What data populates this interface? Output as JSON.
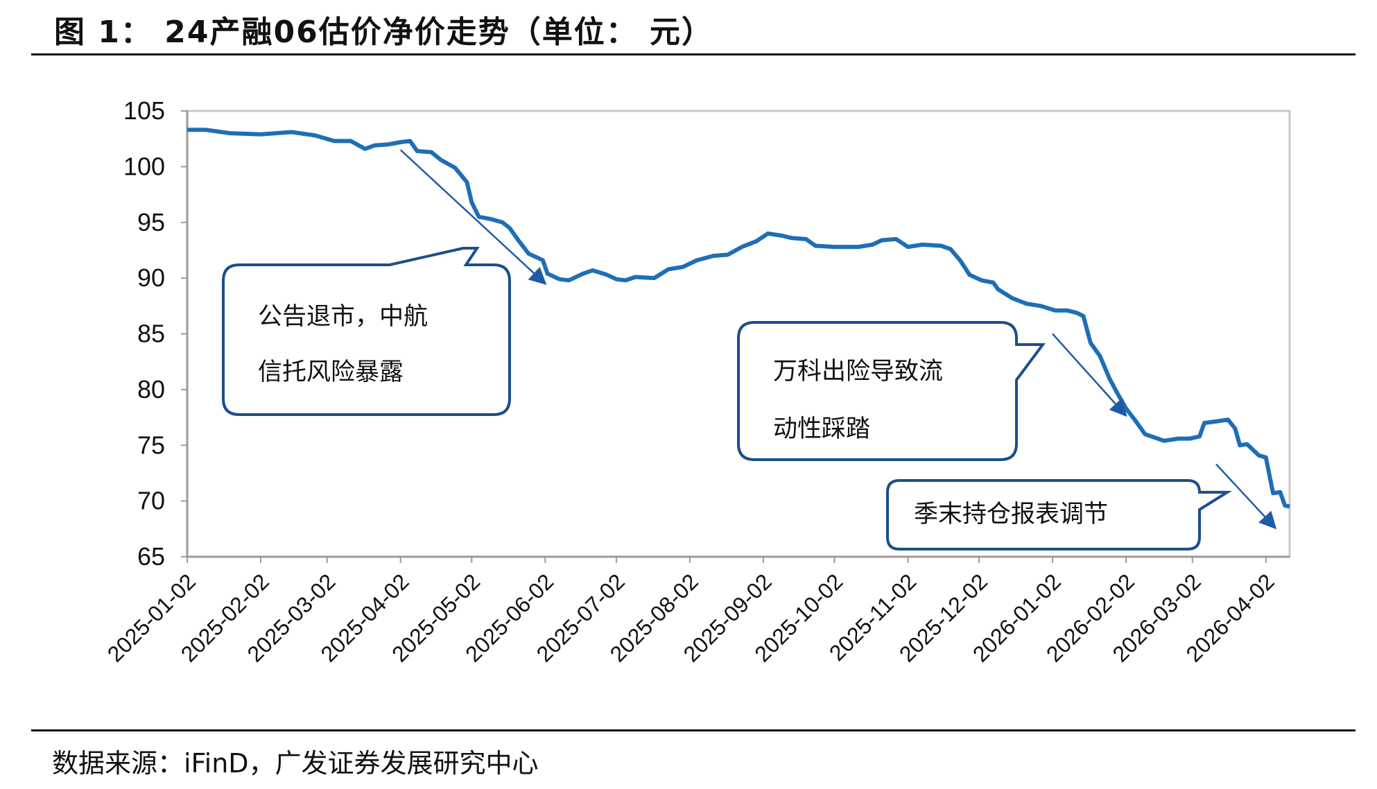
{
  "header": {
    "title": "图  1：  24产融06估价净价走势（单位：  元）"
  },
  "source": {
    "text": "数据来源：iFinD，广发证券发展研究中心"
  },
  "colors": {
    "line": "#1f6eb5",
    "callout_border": "#1b4f8a",
    "arrow": "#1f5aa6",
    "axis": "#999999"
  },
  "chart_data": {
    "type": "line",
    "title": "24产融06估价净价走势（单位：元）",
    "ylim": [
      65,
      105
    ],
    "yticks": [
      "105",
      "100",
      "95",
      "90",
      "85",
      "80",
      "75",
      "70",
      "65"
    ],
    "xticks": [
      "2025-01-02",
      "2025-02-02",
      "2025-03-02",
      "2025-04-02",
      "2025-05-02",
      "2025-06-02",
      "2025-07-02",
      "2025-08-02",
      "2025-09-02",
      "2025-10-02",
      "2025-11-02",
      "2025-12-02",
      "2026-01-02",
      "2026-02-02",
      "2026-03-02",
      "2026-04-02"
    ],
    "grid": false,
    "series": [
      {
        "points": [
          [
            "2025-01-02",
            103.3
          ],
          [
            "2025-01-10",
            103.3
          ],
          [
            "2025-01-20",
            103.0
          ],
          [
            "2025-02-02",
            102.9
          ],
          [
            "2025-02-15",
            103.1
          ],
          [
            "2025-02-25",
            102.8
          ],
          [
            "2025-03-05",
            102.3
          ],
          [
            "2025-03-12",
            102.3
          ],
          [
            "2025-03-18",
            101.6
          ],
          [
            "2025-03-22",
            101.9
          ],
          [
            "2025-03-28",
            102.0
          ],
          [
            "2025-04-02",
            102.2
          ],
          [
            "2025-04-06",
            102.3
          ],
          [
            "2025-04-09",
            101.4
          ],
          [
            "2025-04-15",
            101.3
          ],
          [
            "2025-04-19",
            100.6
          ],
          [
            "2025-04-25",
            99.9
          ],
          [
            "2025-04-30",
            98.6
          ],
          [
            "2025-05-02",
            96.8
          ],
          [
            "2025-05-05",
            95.5
          ],
          [
            "2025-05-10",
            95.3
          ],
          [
            "2025-05-15",
            95.0
          ],
          [
            "2025-05-18",
            94.5
          ],
          [
            "2025-05-22",
            93.3
          ],
          [
            "2025-05-26",
            92.2
          ],
          [
            "2025-05-30",
            91.8
          ],
          [
            "2025-06-01",
            91.6
          ],
          [
            "2025-06-03",
            90.4
          ],
          [
            "2025-06-08",
            89.9
          ],
          [
            "2025-06-12",
            89.8
          ],
          [
            "2025-06-18",
            90.4
          ],
          [
            "2025-06-22",
            90.7
          ],
          [
            "2025-06-28",
            90.3
          ],
          [
            "2025-07-02",
            89.9
          ],
          [
            "2025-07-06",
            89.8
          ],
          [
            "2025-07-10",
            90.1
          ],
          [
            "2025-07-18",
            90.0
          ],
          [
            "2025-07-24",
            90.8
          ],
          [
            "2025-07-30",
            91.0
          ],
          [
            "2025-08-05",
            91.6
          ],
          [
            "2025-08-12",
            92.0
          ],
          [
            "2025-08-18",
            92.1
          ],
          [
            "2025-08-24",
            92.8
          ],
          [
            "2025-08-30",
            93.3
          ],
          [
            "2025-09-04",
            94.0
          ],
          [
            "2025-09-10",
            93.8
          ],
          [
            "2025-09-14",
            93.6
          ],
          [
            "2025-09-20",
            93.5
          ],
          [
            "2025-09-24",
            92.9
          ],
          [
            "2025-10-02",
            92.8
          ],
          [
            "2025-10-12",
            92.8
          ],
          [
            "2025-10-18",
            93.0
          ],
          [
            "2025-10-22",
            93.4
          ],
          [
            "2025-10-28",
            93.5
          ],
          [
            "2025-11-02",
            92.8
          ],
          [
            "2025-11-08",
            93.0
          ],
          [
            "2025-11-16",
            92.9
          ],
          [
            "2025-11-20",
            92.6
          ],
          [
            "2025-11-24",
            91.6
          ],
          [
            "2025-11-28",
            90.3
          ],
          [
            "2025-12-03",
            89.8
          ],
          [
            "2025-12-08",
            89.6
          ],
          [
            "2025-12-10",
            89.0
          ],
          [
            "2025-12-16",
            88.2
          ],
          [
            "2025-12-22",
            87.7
          ],
          [
            "2025-12-28",
            87.5
          ],
          [
            "2026-01-03",
            87.1
          ],
          [
            "2026-01-08",
            87.1
          ],
          [
            "2026-01-12",
            86.9
          ],
          [
            "2026-01-15",
            86.6
          ],
          [
            "2026-01-18",
            84.2
          ],
          [
            "2026-01-22",
            83.0
          ],
          [
            "2026-01-26",
            81.0
          ],
          [
            "2026-01-29",
            79.8
          ],
          [
            "2026-02-02",
            78.3
          ],
          [
            "2026-02-06",
            77.2
          ],
          [
            "2026-02-10",
            76.0
          ],
          [
            "2026-02-14",
            75.7
          ],
          [
            "2026-02-18",
            75.4
          ],
          [
            "2026-02-24",
            75.6
          ],
          [
            "2026-03-01",
            75.6
          ],
          [
            "2026-03-05",
            75.8
          ],
          [
            "2026-03-07",
            77.0
          ],
          [
            "2026-03-14",
            77.2
          ],
          [
            "2026-03-17",
            77.3
          ],
          [
            "2026-03-20",
            76.5
          ],
          [
            "2026-03-22",
            75.0
          ],
          [
            "2026-03-25",
            75.1
          ],
          [
            "2026-03-30",
            74.1
          ],
          [
            "2026-04-02",
            73.9
          ],
          [
            "2026-04-05",
            70.7
          ],
          [
            "2026-04-08",
            70.8
          ],
          [
            "2026-04-10",
            69.6
          ],
          [
            "2026-04-12",
            69.5
          ]
        ]
      }
    ],
    "annotations": [
      {
        "text_lines": [
          "公告退市，中航",
          "信托风险暴露"
        ],
        "arrow_from": [
          "2025-04-02",
          101.5
        ],
        "arrow_to": [
          "2025-06-01",
          89.7
        ]
      },
      {
        "text_lines": [
          "万科出险导致流",
          "动性踩踏"
        ],
        "arrow_from": [
          "2026-01-02",
          85.0
        ],
        "arrow_to": [
          "2026-02-01",
          77.9
        ]
      },
      {
        "text_lines": [
          "季末持仓报表调节"
        ],
        "arrow_from": [
          "2026-03-12",
          73.3
        ],
        "arrow_to": [
          "2026-04-05",
          67.8
        ]
      }
    ]
  }
}
